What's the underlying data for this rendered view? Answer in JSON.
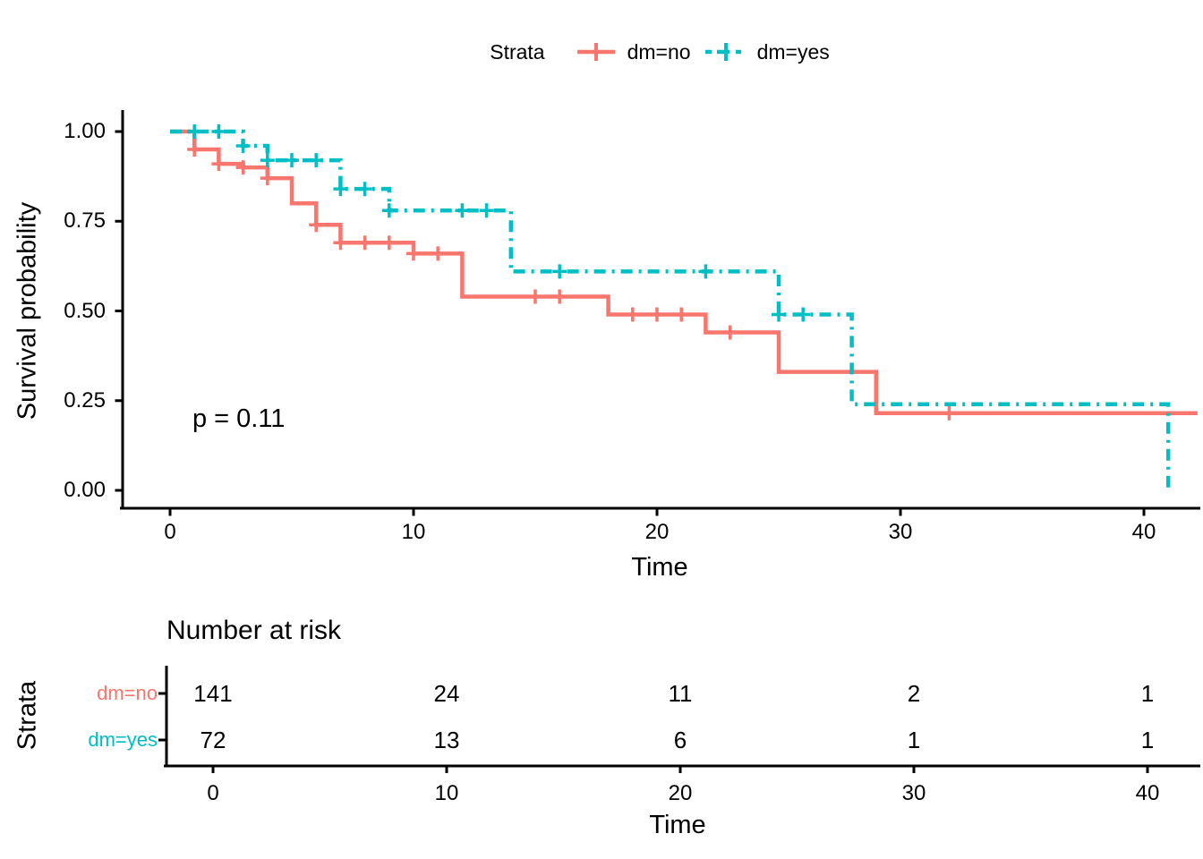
{
  "legend": {
    "title": "Strata"
  },
  "plot": {
    "p_value": "p = 0.11"
  },
  "chart_data": {
    "type": "line",
    "subtype": "kaplan-meier-step-curves",
    "title": "",
    "xlabel": "Time",
    "ylabel": "Survival probability",
    "xlim": [
      0,
      42.2
    ],
    "ylim": [
      0,
      1
    ],
    "grid": "off",
    "legend_position": "top",
    "x_ticks": [
      "0",
      "10",
      "20",
      "30",
      "40"
    ],
    "y_ticks": [
      "1.00",
      "0.75",
      "0.50",
      "0.25",
      "0.00"
    ],
    "p_value": "p = 0.11",
    "series": [
      {
        "name": "dm=no",
        "color": "#F8766D",
        "dash": "solid",
        "end_time": 42.2,
        "steps": [
          [
            0,
            1.0
          ],
          [
            1,
            0.95
          ],
          [
            2,
            0.91
          ],
          [
            3,
            0.9
          ],
          [
            4,
            0.87
          ],
          [
            5,
            0.8
          ],
          [
            6,
            0.74
          ],
          [
            7,
            0.69
          ],
          [
            10,
            0.66
          ],
          [
            12,
            0.54
          ],
          [
            18,
            0.49
          ],
          [
            22,
            0.44
          ],
          [
            25,
            0.33
          ],
          [
            29,
            0.215
          ]
        ],
        "censor_times": [
          1,
          2,
          3,
          4,
          6,
          7,
          8,
          9,
          10,
          11,
          15,
          16,
          19,
          20,
          21,
          23,
          32
        ]
      },
      {
        "name": "dm=yes",
        "color": "#00BFC4",
        "dash": "dashdot",
        "end_time": 41,
        "steps": [
          [
            0,
            1.0
          ],
          [
            3,
            0.96
          ],
          [
            4,
            0.92
          ],
          [
            7,
            0.84
          ],
          [
            9,
            0.78
          ],
          [
            14,
            0.61
          ],
          [
            25,
            0.49
          ],
          [
            28,
            0.24
          ],
          [
            41,
            0.0
          ]
        ],
        "censor_times": [
          1,
          2,
          3,
          4,
          5,
          6,
          7,
          8,
          9,
          12,
          13,
          16,
          22,
          25,
          26
        ]
      }
    ]
  },
  "risk_table": {
    "title": "Number at risk",
    "axis_label": "Strata",
    "xlabel": "Time",
    "x_ticks": [
      "0",
      "10",
      "20",
      "30",
      "40"
    ],
    "rows": [
      {
        "label": "dm=no",
        "color": "#F8766D",
        "counts": [
          "141",
          "24",
          "11",
          "2",
          "1"
        ]
      },
      {
        "label": "dm=yes",
        "color": "#00BFC4",
        "counts": [
          "72",
          "13",
          "6",
          "1",
          "1"
        ]
      }
    ]
  }
}
